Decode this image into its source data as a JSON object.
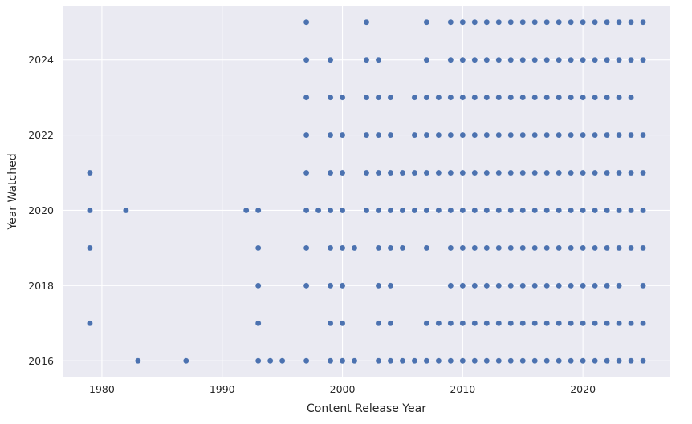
{
  "chart_data": {
    "type": "scatter",
    "xlabel": "Content Release Year",
    "ylabel": "Year Watched",
    "x_ticks": [
      1980,
      1990,
      2000,
      2010,
      2020
    ],
    "y_ticks": [
      2016,
      2018,
      2020,
      2022,
      2024
    ],
    "xlim": [
      1976.8,
      2027.2
    ],
    "ylim": [
      2015.58,
      2025.42
    ],
    "grid": true,
    "colors": {
      "background": "#eaeaf2",
      "grid": "#ffffff",
      "point": "#4c72b0",
      "text": "#262626"
    },
    "points_by_year_watched": [
      {
        "year_watched": 2025,
        "release_years": [
          1997,
          2002,
          2007,
          2009,
          2010,
          2011,
          2012,
          2013,
          2014,
          2015,
          2016,
          2017,
          2018,
          2019,
          2020,
          2021,
          2022,
          2023,
          2024,
          2025
        ]
      },
      {
        "year_watched": 2024,
        "release_years": [
          1997,
          1999,
          2002,
          2003,
          2007,
          2009,
          2010,
          2011,
          2012,
          2013,
          2014,
          2015,
          2016,
          2017,
          2018,
          2019,
          2020,
          2021,
          2022,
          2023,
          2024,
          2025
        ]
      },
      {
        "year_watched": 2023,
        "release_years": [
          1997,
          1999,
          2000,
          2002,
          2003,
          2004,
          2006,
          2007,
          2008,
          2009,
          2010,
          2011,
          2012,
          2013,
          2014,
          2015,
          2016,
          2017,
          2018,
          2019,
          2020,
          2021,
          2022,
          2023,
          2024
        ]
      },
      {
        "year_watched": 2022,
        "release_years": [
          1997,
          1999,
          2000,
          2002,
          2003,
          2004,
          2006,
          2007,
          2008,
          2009,
          2010,
          2011,
          2012,
          2013,
          2014,
          2015,
          2016,
          2017,
          2018,
          2019,
          2020,
          2021,
          2022,
          2023,
          2024,
          2025
        ]
      },
      {
        "year_watched": 2021,
        "release_years": [
          1979,
          1997,
          1999,
          2000,
          2002,
          2003,
          2004,
          2005,
          2006,
          2007,
          2008,
          2009,
          2010,
          2011,
          2012,
          2013,
          2014,
          2015,
          2016,
          2017,
          2018,
          2019,
          2020,
          2021,
          2022,
          2023,
          2024,
          2025
        ]
      },
      {
        "year_watched": 2020,
        "release_years": [
          1979,
          1982,
          1992,
          1993,
          1997,
          1998,
          1999,
          2000,
          2002,
          2003,
          2004,
          2005,
          2006,
          2007,
          2008,
          2009,
          2010,
          2011,
          2012,
          2013,
          2014,
          2015,
          2016,
          2017,
          2018,
          2019,
          2020,
          2021,
          2022,
          2023,
          2024,
          2025
        ]
      },
      {
        "year_watched": 2019,
        "release_years": [
          1979,
          1993,
          1997,
          1999,
          2000,
          2001,
          2003,
          2004,
          2005,
          2007,
          2009,
          2010,
          2011,
          2012,
          2013,
          2014,
          2015,
          2016,
          2017,
          2018,
          2019,
          2020,
          2021,
          2022,
          2023,
          2024,
          2025
        ]
      },
      {
        "year_watched": 2018,
        "release_years": [
          1993,
          1997,
          1999,
          2000,
          2003,
          2004,
          2009,
          2010,
          2011,
          2012,
          2013,
          2014,
          2015,
          2016,
          2017,
          2018,
          2019,
          2020,
          2021,
          2022,
          2023,
          2025
        ]
      },
      {
        "year_watched": 2017,
        "release_years": [
          1979,
          1993,
          1999,
          2000,
          2003,
          2004,
          2007,
          2008,
          2009,
          2010,
          2011,
          2012,
          2013,
          2014,
          2015,
          2016,
          2017,
          2018,
          2019,
          2020,
          2021,
          2022,
          2023,
          2024,
          2025
        ]
      },
      {
        "year_watched": 2016,
        "release_years": [
          1983,
          1987,
          1993,
          1994,
          1995,
          1997,
          1999,
          2000,
          2001,
          2003,
          2004,
          2005,
          2006,
          2007,
          2008,
          2009,
          2010,
          2011,
          2012,
          2013,
          2014,
          2015,
          2016,
          2017,
          2018,
          2019,
          2020,
          2021,
          2022,
          2023,
          2024,
          2025
        ]
      }
    ]
  }
}
